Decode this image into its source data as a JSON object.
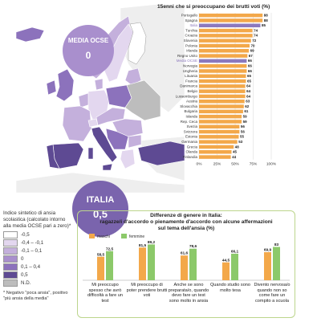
{
  "colors": {
    "bar_orange": "#f3a84a",
    "bar_highlight": "#8c79be",
    "ocse_circle": "#a98fcd",
    "italia_circle": "#7a64ad",
    "male": "#f3a84a",
    "female": "#8cc96a",
    "map_outside": "#eeeeee"
  },
  "ocse_circle": {
    "title": "MEDIA OCSE",
    "value": "0"
  },
  "italia_circle": {
    "title": "ITALIA",
    "value": "0,5"
  },
  "legend": {
    "title": "Indice sintetico di ansia scolastica (calcolato intorno alla media OCSE pari a zero)*",
    "items": [
      {
        "label": "-0,5",
        "color": "#ffffff"
      },
      {
        "label": "-0,4 – -0,1",
        "color": "#e3d7ef"
      },
      {
        "label": "-0,1 – 0,1",
        "color": "#c4b0dc"
      },
      {
        "label": "0",
        "color": "#a98fcd"
      },
      {
        "label": "0,1 – 0,4",
        "color": "#8c72bc"
      },
      {
        "label": "0,5",
        "color": "#5e4a93"
      },
      {
        "label": "N.D.",
        "color": "#bdbdbd"
      }
    ],
    "note": "* Negativo \"poca ansia\", positivo \"più ansia della media\""
  },
  "chart_data": [
    {
      "type": "bar",
      "orientation": "horizontal",
      "title": "15enni che si preoccupano dei brutti voti (%)",
      "categories": [
        "Portogallo",
        "Spagna",
        "Italia",
        "Turchia",
        "Croazia",
        "Slovenia",
        "Polonia",
        "Irlanda",
        "Regno Unito",
        "Media OCSE",
        "Norvegia",
        "Ungheria",
        "Lituania",
        "Francia",
        "Danimarca",
        "Belgio",
        "Lussemburgo",
        "Austria",
        "Slovacchia",
        "Bulgaria",
        "Islanda",
        "Rep. Ceca",
        "Svezia",
        "Svizzera",
        "Estonia",
        "Germania",
        "Grecia",
        "Olanda",
        "Finlandia"
      ],
      "values": [
        88,
        88,
        85,
        74,
        74,
        72,
        70,
        69,
        67,
        66,
        66,
        66,
        65,
        65,
        64,
        64,
        64,
        63,
        62,
        61,
        59,
        59,
        56,
        56,
        55,
        53,
        48,
        45,
        44
      ],
      "highlight": [
        "Italia",
        "Media OCSE"
      ],
      "xticks": [
        "0%",
        "25%",
        "50%",
        "75%",
        "100%"
      ],
      "xlim": [
        0,
        100
      ]
    },
    {
      "type": "bar",
      "title": "Differenze di genere in Italia:",
      "subtitle": "ragazze/i d'accordo o pienamente d'accordo con alcune affermazioni sul tema dell'ansia (%)",
      "categories": [
        "Mi preoccupo spesso che avrò difficoltà a fare un test",
        "Mi preoccupo di poter prendere brutti voti",
        "Anche se sono preparata/o, quando devo fare un test sono molto in ansia",
        "Quando studio sono molto tesa",
        "Divento nervosa/o quando non so come fare un compito a scuola"
      ],
      "series": [
        {
          "name": "maschi",
          "values": [
            58.5,
            81.5,
            61.6,
            44.5,
            69.9
          ]
        },
        {
          "name": "femmine",
          "values": [
            72.5,
            89.2,
            78.6,
            66.1,
            83
          ]
        }
      ],
      "value_labels": [
        [
          "58,5",
          "81,5",
          "61,6",
          "44,5",
          "69,9"
        ],
        [
          "72,5",
          "89,2",
          "78,6",
          "66,1",
          "83"
        ]
      ],
      "ylim": [
        0,
        100
      ]
    }
  ]
}
